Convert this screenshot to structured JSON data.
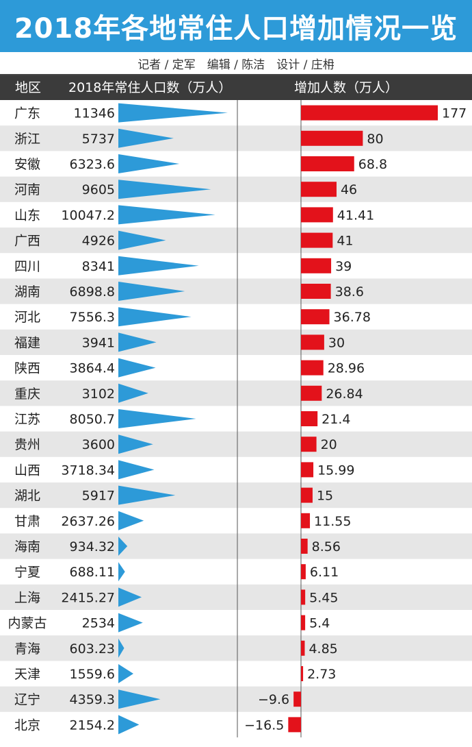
{
  "title": "2018年各地常住人口增加情况一览",
  "credits": "记者 / 定军　编辑 / 陈洁　设计 / 庄枏",
  "header": {
    "region": "地区",
    "population": "2018年常住人口数（万人）",
    "increase": "增加人数（万人）"
  },
  "colors": {
    "title_bg": "#2d9ad8",
    "triangle": "#2d9ad8",
    "bar": "#e3121b",
    "header_bg": "#3b3b3b",
    "stripe": "#e6e6e6"
  },
  "chart_data": {
    "type": "bar",
    "title": "2018年各地常住人口增加情况一览",
    "categories": [
      "广东",
      "浙江",
      "安徽",
      "河南",
      "山东",
      "广西",
      "四川",
      "湖南",
      "河北",
      "福建",
      "陕西",
      "重庆",
      "江苏",
      "贵州",
      "山西",
      "湖北",
      "甘肃",
      "海南",
      "宁夏",
      "上海",
      "内蒙古",
      "青海",
      "天津",
      "辽宁",
      "北京"
    ],
    "series": [
      {
        "name": "2018年常住人口数（万人）",
        "values": [
          "11346",
          "5737",
          "6323.6",
          "9605",
          "10047.2",
          "4926",
          "8341",
          "6898.8",
          "7556.3",
          "3941",
          "3864.4",
          "3102",
          "8050.7",
          "3600",
          "3718.34",
          "5917",
          "2637.26",
          "934.32",
          "688.11",
          "2415.27",
          "2534",
          "603.23",
          "1559.6",
          "4359.3",
          "2154.2"
        ]
      },
      {
        "name": "增加人数（万人）",
        "values": [
          "177",
          "80",
          "68.8",
          "46",
          "41.41",
          "41",
          "39",
          "38.6",
          "36.78",
          "30",
          "28.96",
          "26.84",
          "21.4",
          "20",
          "15.99",
          "15",
          "11.55",
          "8.56",
          "6.11",
          "5.45",
          "5.4",
          "4.85",
          "2.73",
          "−9.6",
          "−16.5"
        ]
      }
    ]
  }
}
